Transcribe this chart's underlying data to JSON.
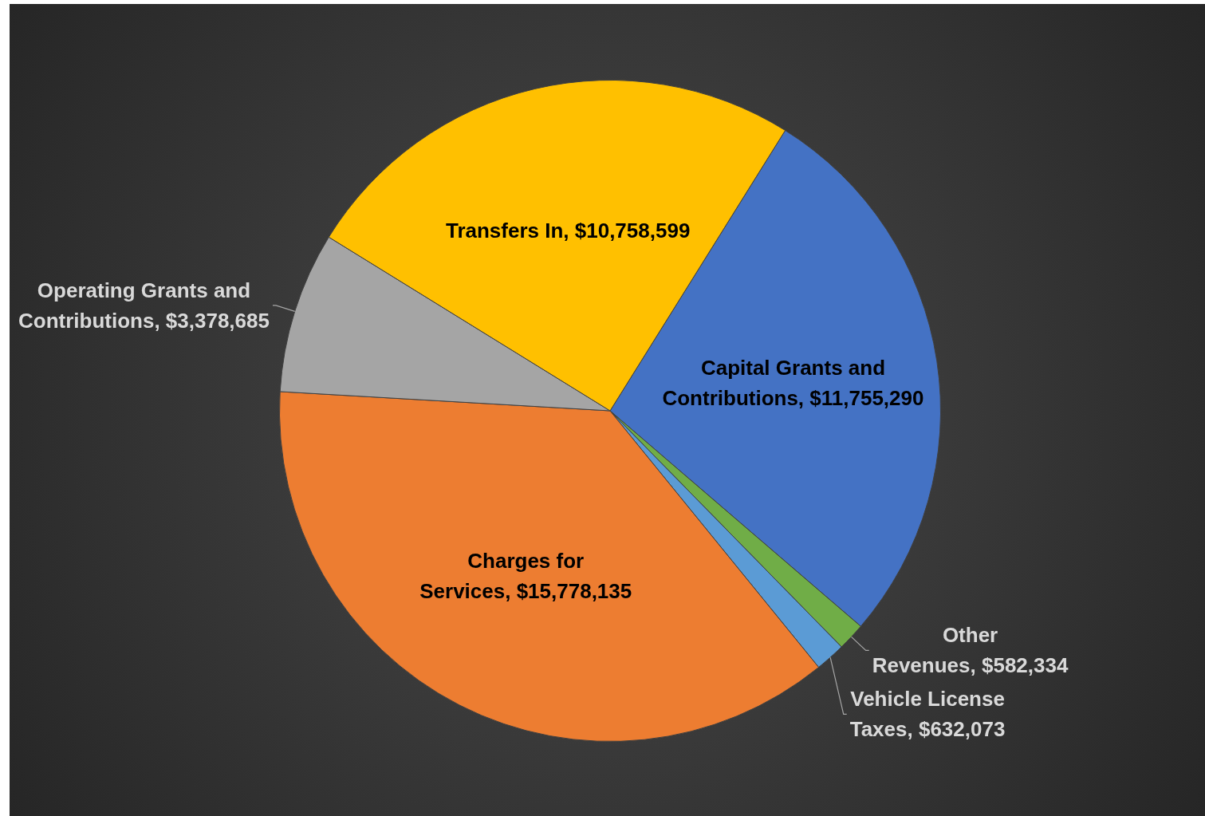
{
  "chart_data": {
    "type": "pie",
    "categories": [
      "Capital Grants and Contributions",
      "Other Revenues",
      "Vehicle License Taxes",
      "Charges for Services",
      "Operating Grants and Contributions",
      "Transfers In"
    ],
    "values": [
      11755290,
      582334,
      632073,
      15778135,
      3378685,
      10758599
    ],
    "value_labels": [
      "$11,755,290",
      "$582,334",
      "$632,073",
      "$15,778,135",
      "$3,378,685",
      "$10,758,599"
    ],
    "colors": [
      "#4472c4",
      "#70ad47",
      "#5b9bd5",
      "#ed7d31",
      "#a5a5a5",
      "#ffc000"
    ],
    "legend": false
  }
}
